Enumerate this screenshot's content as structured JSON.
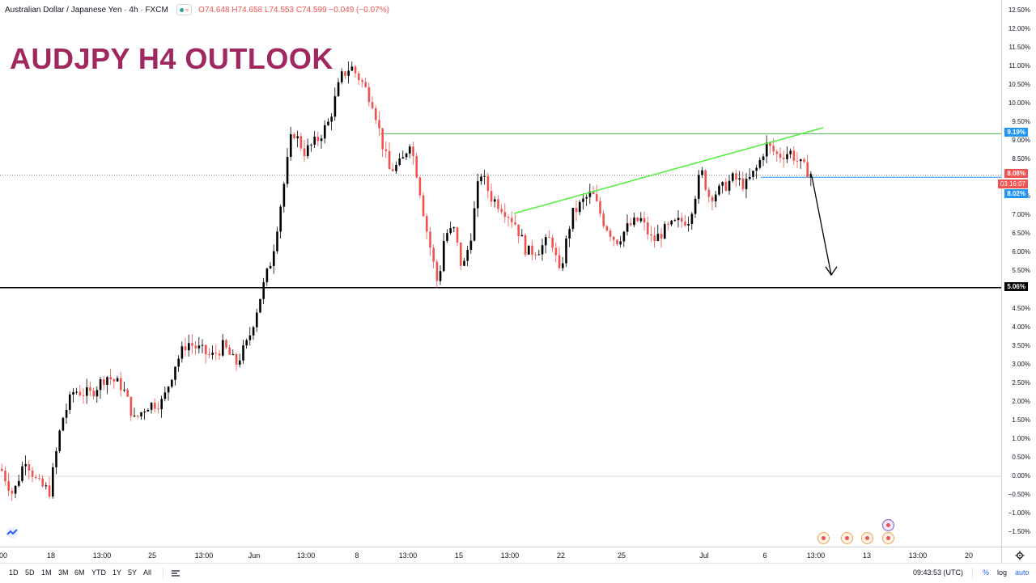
{
  "header": {
    "symbol": "Australian Dollar / Japanese Yen · 4h · FXCM",
    "ohlc": "O74.648  H74.658  L74.553  C74.599  −0.049 (−0.07%)"
  },
  "headline": "AUDJPY H4 OUTLOOK",
  "price_axis": {
    "labels": [
      "12.50%",
      "12.00%",
      "11.50%",
      "11.00%",
      "10.50%",
      "10.00%",
      "9.50%",
      "9.00%",
      "8.50%",
      "7.50%",
      "7.00%",
      "6.50%",
      "6.00%",
      "5.50%",
      "4.50%",
      "4.00%",
      "3.50%",
      "3.00%",
      "2.50%",
      "2.00%",
      "1.50%",
      "1.00%",
      "0.50%",
      "0.00%",
      "−0.50%",
      "−1.00%",
      "−1.50%"
    ],
    "tag_resistance": "9.19%",
    "tag_current": "8.08%",
    "tag_timer": "03:16:07",
    "tag_trend": "8.02%",
    "tag_support": "5.06%",
    "colors": {
      "resistance": "#2196f3",
      "current": "#ef5350",
      "support": "#000000"
    }
  },
  "time_axis": {
    "labels": [
      "00",
      "18",
      "13:00",
      "25",
      "13:00",
      "Jun",
      "13:00",
      "8",
      "13:00",
      "15",
      "13:00",
      "22",
      "25",
      "Jul",
      "6",
      "13:00",
      "13",
      "13:00",
      "20"
    ]
  },
  "bottom_bar": {
    "ranges": [
      "1D",
      "5D",
      "1M",
      "3M",
      "6M",
      "YTD",
      "1Y",
      "5Y",
      "All"
    ],
    "time": "09:43:53 (UTC)",
    "percent": "%",
    "log": "log",
    "auto": "auto"
  },
  "chart_data": {
    "type": "candlestick",
    "y_unit": "percent change",
    "ylim": [
      -1.8,
      12.7
    ],
    "up_color": "#000000",
    "down_color": "#ef5350",
    "lines": {
      "resistance": 9.19,
      "support": 5.06,
      "current": 8.08,
      "trend_level": 8.02,
      "zero": 0.0
    },
    "path": [
      [
        0,
        0.2
      ],
      [
        15,
        -0.5
      ],
      [
        30,
        0.5
      ],
      [
        45,
        -0.2
      ],
      [
        60,
        -0.4
      ],
      [
        75,
        1.5
      ],
      [
        90,
        2.3
      ],
      [
        110,
        2.2
      ],
      [
        130,
        2.7
      ],
      [
        150,
        2.4
      ],
      [
        165,
        1.5
      ],
      [
        180,
        1.9
      ],
      [
        200,
        2.0
      ],
      [
        215,
        3.0
      ],
      [
        230,
        3.6
      ],
      [
        245,
        3.4
      ],
      [
        260,
        3.2
      ],
      [
        275,
        3.5
      ],
      [
        290,
        3.0
      ],
      [
        305,
        3.6
      ],
      [
        320,
        4.8
      ],
      [
        335,
        5.9
      ],
      [
        350,
        7.9
      ],
      [
        360,
        9.3
      ],
      [
        375,
        8.7
      ],
      [
        390,
        9.0
      ],
      [
        405,
        9.5
      ],
      [
        420,
        10.7
      ],
      [
        432,
        11.0
      ],
      [
        445,
        10.6
      ],
      [
        460,
        10.0
      ],
      [
        470,
        9.0
      ],
      [
        480,
        8.2
      ],
      [
        495,
        8.4
      ],
      [
        505,
        9.0
      ],
      [
        515,
        8.0
      ],
      [
        525,
        6.7
      ],
      [
        540,
        5.1
      ],
      [
        548,
        6.5
      ],
      [
        560,
        6.6
      ],
      [
        570,
        5.5
      ],
      [
        580,
        6.4
      ],
      [
        592,
        8.2
      ],
      [
        605,
        7.5
      ],
      [
        620,
        7.2
      ],
      [
        635,
        6.8
      ],
      [
        650,
        6.0
      ],
      [
        665,
        6.1
      ],
      [
        680,
        6.4
      ],
      [
        690,
        5.4
      ],
      [
        705,
        7.0
      ],
      [
        720,
        7.4
      ],
      [
        730,
        7.6
      ],
      [
        745,
        6.8
      ],
      [
        760,
        6.3
      ],
      [
        775,
        6.7
      ],
      [
        790,
        6.9
      ],
      [
        805,
        6.3
      ],
      [
        820,
        6.6
      ],
      [
        835,
        6.8
      ],
      [
        850,
        6.9
      ],
      [
        865,
        8.2
      ],
      [
        875,
        7.5
      ],
      [
        890,
        7.7
      ],
      [
        905,
        8.0
      ],
      [
        920,
        7.8
      ],
      [
        935,
        8.3
      ],
      [
        945,
        8.9
      ],
      [
        960,
        8.6
      ],
      [
        975,
        8.7
      ],
      [
        990,
        8.3
      ],
      [
        1003,
        8.08
      ]
    ]
  }
}
